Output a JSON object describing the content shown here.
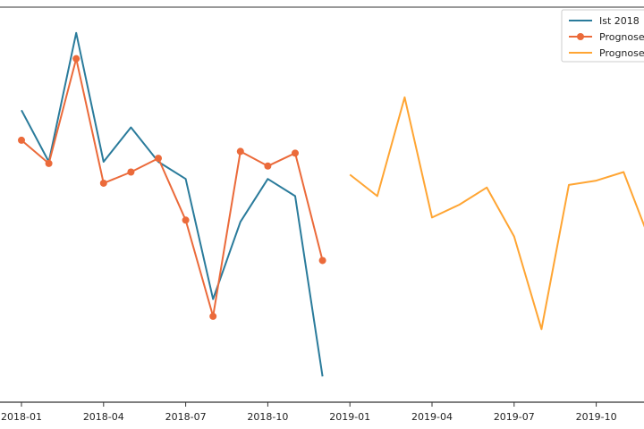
{
  "chart_data": {
    "type": "line",
    "title": "",
    "xlabel": "",
    "ylabel": "",
    "grid": false,
    "legend_placement": "top-right",
    "x_ticks": [
      "2018-01",
      "2018-04",
      "2018-07",
      "2018-10",
      "2019-01",
      "2019-04",
      "2019-07",
      "2019-10"
    ],
    "series": [
      {
        "name": "Ist 2018",
        "color": "#2a7b9b",
        "marker": "none",
        "x": [
          "2018-01",
          "2018-02",
          "2018-03",
          "2018-04",
          "2018-05",
          "2018-06",
          "2018-07",
          "2018-08",
          "2018-09",
          "2018-10",
          "2018-11",
          "2018-12"
        ],
        "values": [
          74,
          68,
          83,
          68,
          72,
          68,
          66,
          52,
          61,
          66,
          64,
          43
        ]
      },
      {
        "name": "Prognose",
        "color": "#eb6a3a",
        "marker": "circle",
        "x": [
          "2018-01",
          "2018-02",
          "2018-03",
          "2018-04",
          "2018-05",
          "2018-06",
          "2018-07",
          "2018-08",
          "2018-09",
          "2018-10",
          "2018-11",
          "2018-12"
        ],
        "values": [
          70.5,
          67.8,
          80,
          65.5,
          66.8,
          68.4,
          61.2,
          50,
          69.2,
          67.5,
          69,
          56.5
        ]
      },
      {
        "name": "Prognose",
        "color": "#ffa533",
        "marker": "none",
        "x": [
          "2019-01",
          "2019-02",
          "2019-03",
          "2019-04",
          "2019-05",
          "2019-06",
          "2019-07",
          "2019-08",
          "2019-09",
          "2019-10",
          "2019-11",
          "2019-12"
        ],
        "values": [
          66.5,
          64,
          75.5,
          61.5,
          63,
          65,
          59.3,
          48.5,
          65.3,
          65.8,
          66.8,
          58.5
        ]
      }
    ]
  }
}
